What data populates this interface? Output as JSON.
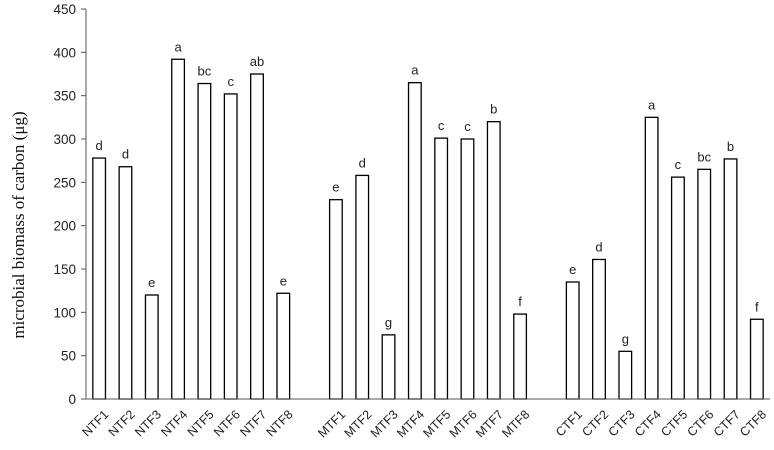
{
  "chart_data": {
    "type": "bar",
    "title": "",
    "xlabel": "",
    "ylabel": "microbial biomass of carbon (μg)",
    "ylim": [
      0,
      450
    ],
    "yticks": [
      0,
      50,
      100,
      150,
      200,
      250,
      300,
      350,
      400,
      450
    ],
    "grid": false,
    "groups": [
      {
        "categories": [
          "NTF1",
          "NTF2",
          "NTF3",
          "NTF4",
          "NTF5",
          "NTF6",
          "NTF7",
          "NTF8"
        ],
        "values": [
          278,
          268,
          120,
          392,
          364,
          352,
          375,
          122
        ],
        "letters": [
          "d",
          "d",
          "e",
          "a",
          "bc",
          "c",
          "ab",
          "e"
        ]
      },
      {
        "categories": [
          "MTF1",
          "MTF2",
          "MTF3",
          "MTF4",
          "MTF5",
          "MTF6",
          "MTF7",
          "MTF8"
        ],
        "values": [
          230,
          258,
          74,
          365,
          301,
          300,
          320,
          98
        ],
        "letters": [
          "e",
          "d",
          "g",
          "a",
          "c",
          "c",
          "b",
          "f"
        ]
      },
      {
        "categories": [
          "CTF1",
          "CTF2",
          "CTF3",
          "CTF4",
          "CTF5",
          "CTF6",
          "CTF7",
          "CTF8"
        ],
        "values": [
          135,
          161,
          55,
          325,
          256,
          265,
          277,
          92
        ],
        "letters": [
          "e",
          "d",
          "g",
          "a",
          "c",
          "bc",
          "b",
          "f"
        ]
      }
    ],
    "colors": {
      "bar_fill": "#ffffff",
      "bar_stroke": "#000000",
      "axis": "#555555"
    }
  }
}
